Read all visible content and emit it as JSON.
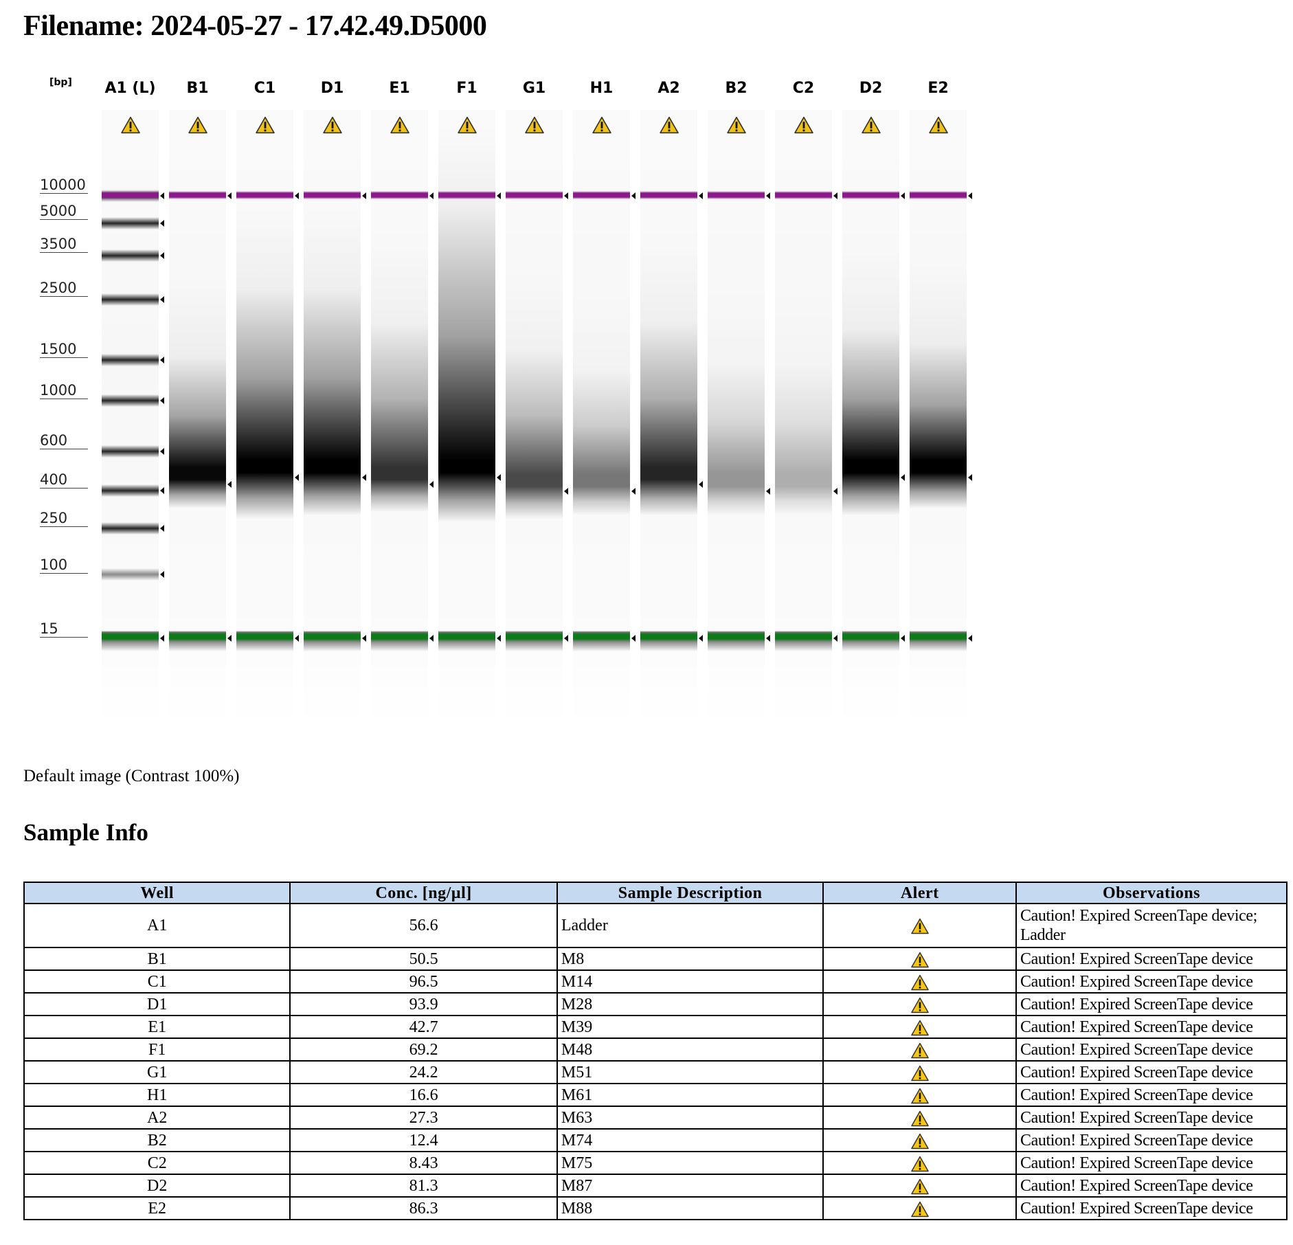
{
  "title": "Filename: 2024-05-27 - 17.42.49.D5000",
  "gel": {
    "unit_label": "[bp]",
    "lanes": [
      "A1 (L)",
      "B1",
      "C1",
      "D1",
      "E1",
      "F1",
      "G1",
      "H1",
      "A2",
      "B2",
      "C2",
      "D2",
      "E2"
    ],
    "markers": [
      "10000",
      "5000",
      "3500",
      "2500",
      "1500",
      "1000",
      "600",
      "400",
      "250",
      "100",
      "15"
    ],
    "upper_marker_color": "#8a1a8a",
    "lower_marker_color": "#0f7a1a",
    "warning_icon": "warning-triangle-icon"
  },
  "caption": "Default image (Contrast 100%)",
  "sample_info": {
    "heading": "Sample Info",
    "columns": [
      "Well",
      "Conc. [ng/µl]",
      "Sample Description",
      "Alert",
      "Observations"
    ],
    "rows": [
      {
        "well": "A1",
        "conc": "56.6",
        "desc": "Ladder",
        "obs1": "Caution! Expired ScreenTape device;",
        "obs2": "Ladder"
      },
      {
        "well": "B1",
        "conc": "50.5",
        "desc": "M8",
        "obs1": "Caution! Expired ScreenTape device"
      },
      {
        "well": "C1",
        "conc": "96.5",
        "desc": "M14",
        "obs1": "Caution! Expired ScreenTape device"
      },
      {
        "well": "D1",
        "conc": "93.9",
        "desc": "M28",
        "obs1": "Caution! Expired ScreenTape device"
      },
      {
        "well": "E1",
        "conc": "42.7",
        "desc": "M39",
        "obs1": "Caution! Expired ScreenTape device"
      },
      {
        "well": "F1",
        "conc": "69.2",
        "desc": "M48",
        "obs1": "Caution! Expired ScreenTape device"
      },
      {
        "well": "G1",
        "conc": "24.2",
        "desc": "M51",
        "obs1": "Caution! Expired ScreenTape device"
      },
      {
        "well": "H1",
        "conc": "16.6",
        "desc": "M61",
        "obs1": "Caution! Expired ScreenTape device"
      },
      {
        "well": "A2",
        "conc": "27.3",
        "desc": "M63",
        "obs1": "Caution! Expired ScreenTape device"
      },
      {
        "well": "B2",
        "conc": "12.4",
        "desc": "M74",
        "obs1": "Caution! Expired ScreenTape device"
      },
      {
        "well": "C2",
        "conc": "8.43",
        "desc": "M75",
        "obs1": "Caution! Expired ScreenTape device"
      },
      {
        "well": "D2",
        "conc": "81.3",
        "desc": "M87",
        "obs1": "Caution! Expired ScreenTape device"
      },
      {
        "well": "E2",
        "conc": "86.3",
        "desc": "M88",
        "obs1": "Caution! Expired ScreenTape device"
      }
    ]
  }
}
